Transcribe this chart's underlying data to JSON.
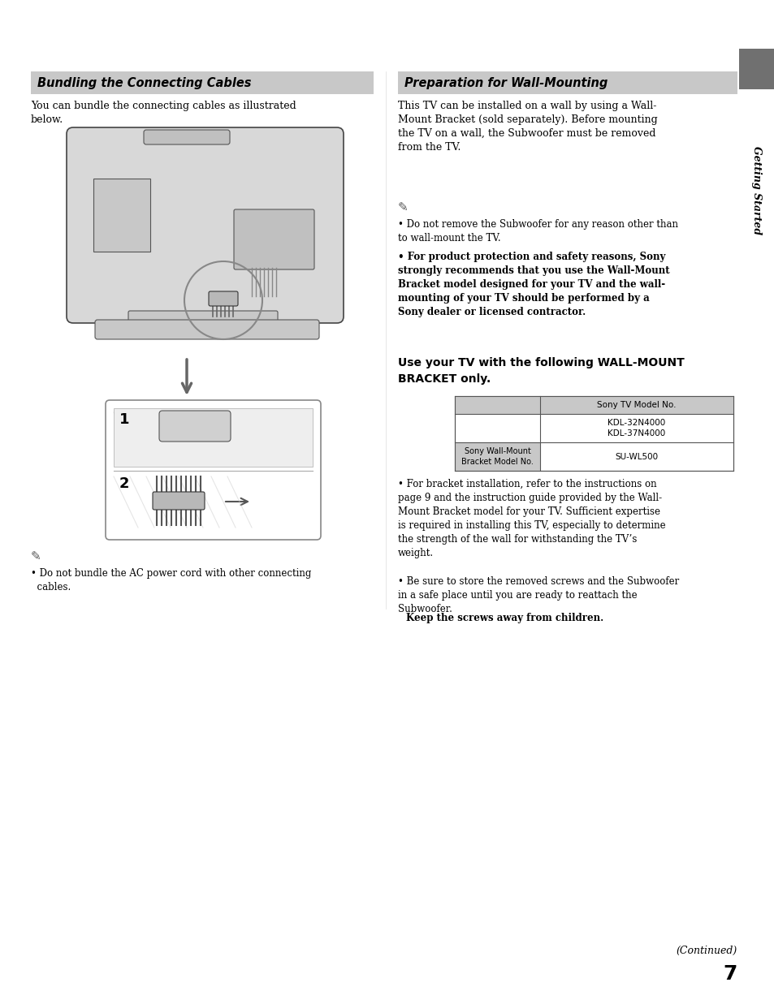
{
  "page_bg": "#ffffff",
  "header_bg": "#c8c8c8",
  "sidebar_dark_bg": "#707070",
  "left_title": "Bundling the Connecting Cables",
  "right_title": "Preparation for Wall-Mounting",
  "left_body_text": "You can bundle the connecting cables as illustrated\nbelow.",
  "right_body_text": "This TV can be installed on a wall by using a Wall-\nMount Bracket (sold separately). Before mounting\nthe TV on a wall, the Subwoofer must be removed\nfrom the TV.",
  "right_note_bullet1": "Do not remove the Subwoofer for any reason other than\nto wall-mount the TV.",
  "right_note_bullet2_bold": "For product protection and safety reasons, Sony\nstrongly recommends that you use the Wall-Mount\nBracket model designed for your TV and the wall-\nmounting of your TV should be performed by a\nSony dealer or licensed contractor.",
  "wall_mount_header_line1": "Use your TV with the following WALL-MOUNT",
  "wall_mount_header_line2": "BRACKET only.",
  "table_col_header": "Sony TV Model No.",
  "table_tv_models": "KDL-32N4000\nKDL-37N4000",
  "table_row_label": "Sony Wall-Mount\nBracket Model No.",
  "table_bracket_model": "SU-WL500",
  "bullet3": "For bracket installation, refer to the instructions on\npage 9 and the instruction guide provided by the Wall-\nMount Bracket model for your TV. Sufficient expertise\nis required in installing this TV, especially to determine\nthe strength of the wall for withstanding the TV’s\nweight.",
  "bullet4_normal": "Be sure to store the removed screws and the Subwoofer\nin a safe place until you are ready to reattach the\nSubwoofer. ",
  "bullet4_bold": "Keep the screws away from children",
  "bullet4_end": ".",
  "left_note": "Do not bundle the AC power cord with other connecting\n  cables.",
  "continued_text": "(Continued)",
  "page_number": "7",
  "sidebar_text": "Getting Started"
}
